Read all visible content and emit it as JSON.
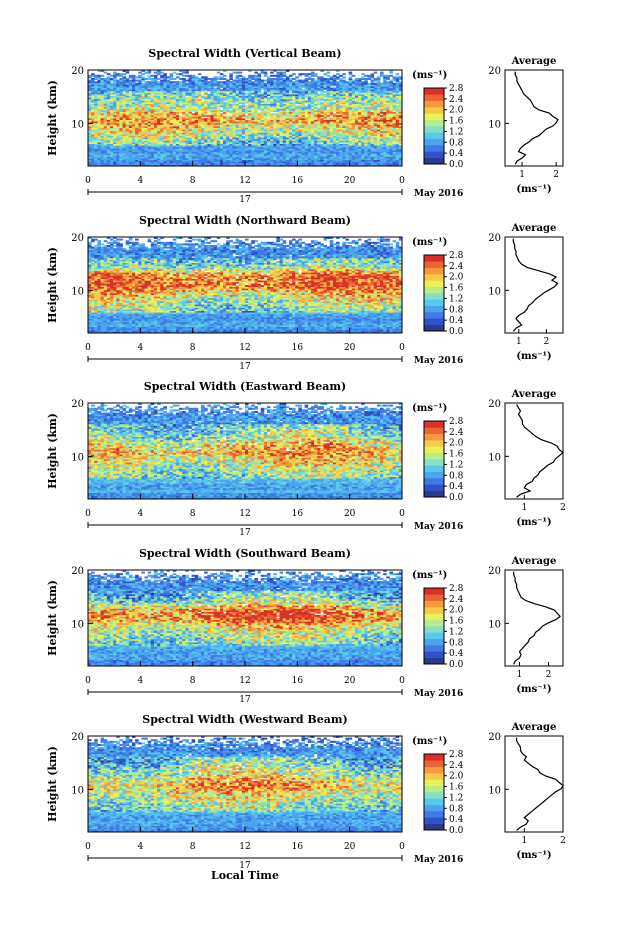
{
  "chart_data": {
    "type": "heatmap",
    "panels": [
      {
        "title": "Spectral Width (Vertical Beam)",
        "profile": [
          0.8,
          0.85,
          1.0,
          1.1,
          0.9,
          0.95,
          1.05,
          1.2,
          1.3,
          1.5,
          1.6,
          1.7,
          1.9,
          2.0,
          2.05,
          1.9,
          1.8,
          1.5,
          1.35,
          1.3,
          1.25,
          1.15,
          1.05,
          1.0,
          0.95,
          0.9,
          0.85,
          0.85,
          0.8,
          0.8
        ],
        "profile_xticks": [
          "1",
          "2"
        ],
        "profile_xlim": [
          0.5,
          2.2
        ]
      },
      {
        "title": "Spectral Width (Northward Beam)",
        "profile": [
          0.8,
          0.9,
          1.1,
          1.0,
          0.9,
          1.0,
          1.2,
          1.3,
          1.35,
          1.5,
          1.6,
          1.75,
          1.9,
          2.1,
          2.3,
          2.4,
          2.2,
          2.35,
          2.1,
          1.7,
          1.3,
          1.1,
          1.0,
          0.95,
          0.9,
          0.9,
          0.85,
          0.85,
          0.8,
          0.8
        ],
        "profile_xticks": [
          "1",
          "2"
        ],
        "profile_xlim": [
          0.5,
          2.6
        ]
      },
      {
        "title": "Spectral Width (Eastward Beam)",
        "profile": [
          0.8,
          0.9,
          1.15,
          1.0,
          1.05,
          1.2,
          1.25,
          1.35,
          1.4,
          1.5,
          1.6,
          1.75,
          1.8,
          1.9,
          2.0,
          1.9,
          1.85,
          1.7,
          1.45,
          1.3,
          1.2,
          1.1,
          1.0,
          0.95,
          0.95,
          0.9,
          0.85,
          0.9,
          0.85,
          0.8
        ],
        "profile_xticks": [
          "1",
          "2"
        ],
        "profile_xlim": [
          0.5,
          2.0
        ]
      },
      {
        "title": "Spectral Width (Southward Beam)",
        "profile": [
          0.8,
          0.85,
          1.0,
          1.05,
          1.0,
          1.1,
          1.2,
          1.3,
          1.35,
          1.5,
          1.55,
          1.7,
          1.8,
          2.0,
          2.25,
          2.4,
          2.3,
          2.2,
          1.9,
          1.5,
          1.2,
          1.05,
          1.0,
          0.95,
          0.9,
          0.9,
          0.85,
          0.85,
          0.8,
          0.8
        ],
        "profile_xticks": [
          "1",
          "2"
        ],
        "profile_xlim": [
          0.5,
          2.5
        ]
      },
      {
        "title": "Spectral Width (Westward Beam)",
        "profile": [
          0.8,
          0.9,
          1.05,
          1.1,
          1.0,
          1.1,
          1.2,
          1.3,
          1.4,
          1.5,
          1.6,
          1.7,
          1.8,
          1.95,
          2.0,
          1.9,
          1.8,
          1.55,
          1.4,
          1.35,
          1.2,
          1.1,
          1.0,
          1.05,
          0.95,
          0.9,
          0.9,
          0.85,
          0.8,
          0.8
        ],
        "profile_xticks": [
          "1",
          "2"
        ],
        "profile_xlim": [
          0.5,
          2.0
        ]
      }
    ],
    "profile_title": "Average",
    "profile_xlabel": "(ms⁻¹)",
    "ylabel": "Height (km)",
    "ylim": [
      2,
      20
    ],
    "yticks": [
      "20",
      "10"
    ],
    "xlim": [
      0,
      24
    ],
    "xticks": [
      "0",
      "4",
      "8",
      "12",
      "16",
      "20",
      "0"
    ],
    "date_label": "17",
    "month_label": "May 2016",
    "xlabel": "Local Time",
    "colorbar": {
      "unit": "(ms⁻¹)",
      "ticks": [
        "2.8",
        "2.4",
        "2.0",
        "1.6",
        "1.2",
        "0.8",
        "0.4",
        "0.0"
      ],
      "range": [
        0.0,
        2.8
      ],
      "colors": [
        "#2a3a8c",
        "#2f52c8",
        "#3f7ae6",
        "#4aa4ee",
        "#58c8ec",
        "#86e0c6",
        "#b8ec8a",
        "#e8f05a",
        "#f8c848",
        "#f49a3c",
        "#ec6434",
        "#d83228"
      ]
    }
  }
}
